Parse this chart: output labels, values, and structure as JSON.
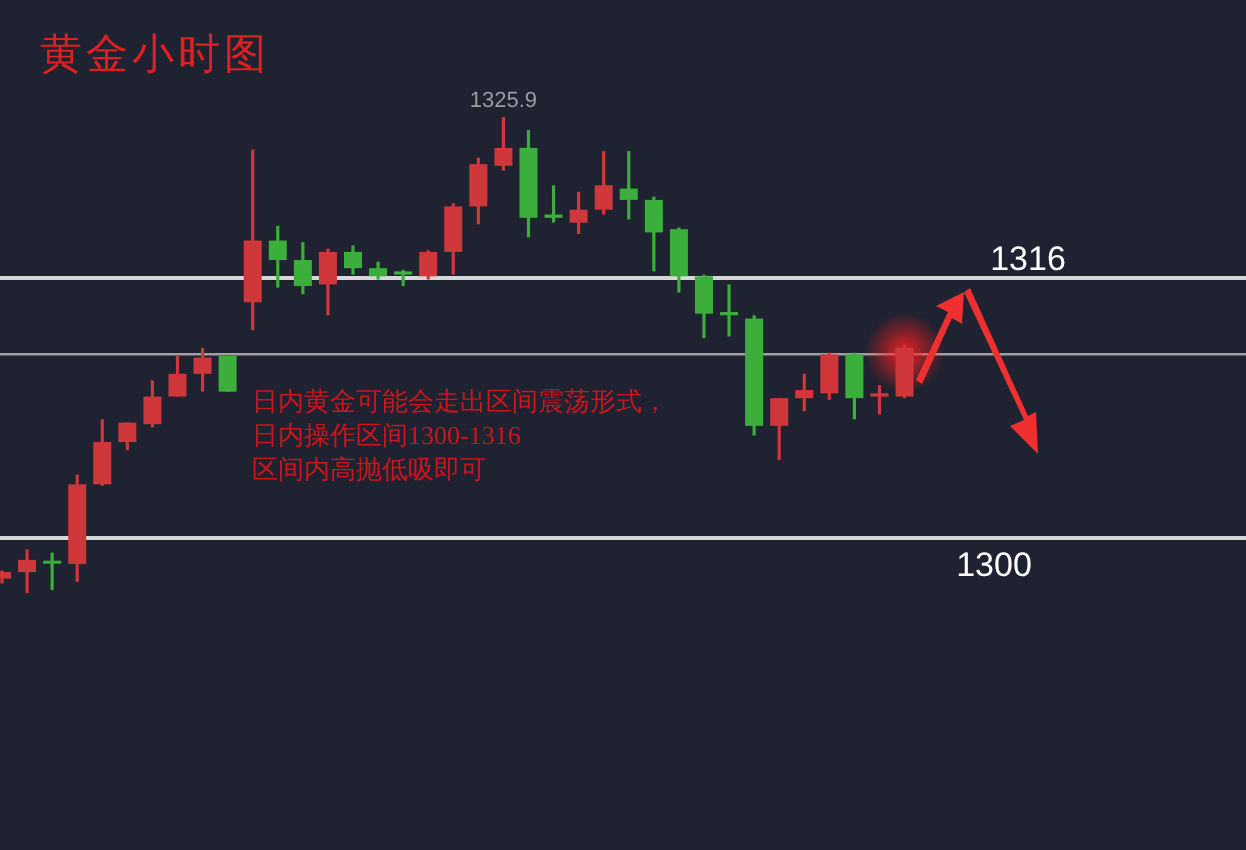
{
  "chart_data": {
    "type": "candlestick",
    "title": "黄金小时图",
    "categories": [
      null,
      null,
      null,
      null,
      null,
      null,
      null,
      null,
      null,
      null,
      null,
      null,
      null,
      null,
      null,
      null,
      null,
      null,
      null,
      null,
      null,
      null,
      null,
      null,
      null,
      null,
      null,
      null,
      null,
      null,
      null,
      null,
      null,
      null,
      null,
      null,
      null,
      null,
      null,
      null,
      null,
      null,
      null,
      null,
      null,
      null,
      null,
      null,
      null,
      null
    ],
    "ohlc": [
      [
        1297.5,
        1298.0,
        1297.2,
        1297.9
      ],
      [
        1297.9,
        1299.3,
        1296.6,
        1298.65
      ],
      [
        1298.6,
        1299.1,
        1296.8,
        1298.5
      ],
      [
        1298.4,
        1303.9,
        1297.3,
        1303.3
      ],
      [
        1303.3,
        1307.3,
        1303.2,
        1305.9
      ],
      [
        1305.9,
        1307.1,
        1305.4,
        1307.1
      ],
      [
        1307.0,
        1309.7,
        1306.8,
        1308.7
      ],
      [
        1308.7,
        1311.2,
        1308.7,
        1310.1
      ],
      [
        1310.1,
        1311.7,
        1309.0,
        1311.1
      ],
      [
        1311.2,
        1311.2,
        1309.0,
        1309.0
      ],
      [
        1314.5,
        1323.9,
        1312.8,
        1318.3
      ],
      [
        1318.3,
        1319.2,
        1315.4,
        1317.1
      ],
      [
        1317.1,
        1318.2,
        1315.0,
        1315.5
      ],
      [
        1315.6,
        1317.8,
        1313.7,
        1317.6
      ],
      [
        1317.6,
        1318.0,
        1316.2,
        1316.6
      ],
      [
        1316.6,
        1317.0,
        1315.9,
        1316.1
      ],
      [
        1316.4,
        1316.5,
        1315.5,
        1316.2
      ],
      [
        1316.1,
        1317.7,
        1315.9,
        1317.6
      ],
      [
        1317.6,
        1320.6,
        1316.2,
        1320.4
      ],
      [
        1320.4,
        1323.4,
        1319.3,
        1323.0
      ],
      [
        1322.9,
        1325.9,
        1322.6,
        1324.0
      ],
      [
        1324.0,
        1325.1,
        1318.5,
        1319.7
      ],
      [
        1319.9,
        1321.7,
        1319.4,
        1319.7
      ],
      [
        1319.4,
        1321.3,
        1318.7,
        1320.2
      ],
      [
        1320.2,
        1323.8,
        1319.9,
        1321.7
      ],
      [
        1321.5,
        1323.8,
        1319.6,
        1320.8
      ],
      [
        1320.8,
        1321.0,
        1316.4,
        1318.8
      ],
      [
        1319.0,
        1319.1,
        1315.1,
        1316.1
      ],
      [
        1316.1,
        1316.2,
        1312.3,
        1313.8
      ],
      [
        1313.9,
        1315.6,
        1312.4,
        1313.7
      ],
      [
        1313.5,
        1313.7,
        1306.3,
        1306.9
      ],
      [
        1306.9,
        1308.6,
        1304.8,
        1308.6
      ],
      [
        1308.6,
        1310.1,
        1307.8,
        1309.1
      ],
      [
        1308.9,
        1311.4,
        1308.5,
        1311.3
      ],
      [
        1311.3,
        1311.4,
        1307.3,
        1308.6
      ],
      [
        1308.7,
        1309.4,
        1307.6,
        1308.9
      ],
      [
        1308.7,
        1311.9,
        1308.6,
        1311.7
      ],
      null,
      null,
      null,
      null,
      null,
      null,
      null,
      null,
      null,
      null,
      null,
      null,
      null
    ],
    "ylim": [
      1280.8,
      1333.1
    ],
    "ref_lines": [
      {
        "axis": "y",
        "value": 1316,
        "label": "1316",
        "color": "#d8d8d8"
      },
      {
        "axis": "y",
        "value": 1311.3,
        "label": null,
        "color": "#a0a0a0"
      },
      {
        "axis": "y",
        "value": 1300,
        "label": "1300",
        "color": "#d8d8d8"
      }
    ],
    "annotations": [
      {
        "text": "1325.9",
        "y": 1325.9
      },
      "日内黄金可能会走出区间震荡形式，",
      "日内操作区间1300-1316",
      "区间内高抛低吸即可"
    ]
  }
}
